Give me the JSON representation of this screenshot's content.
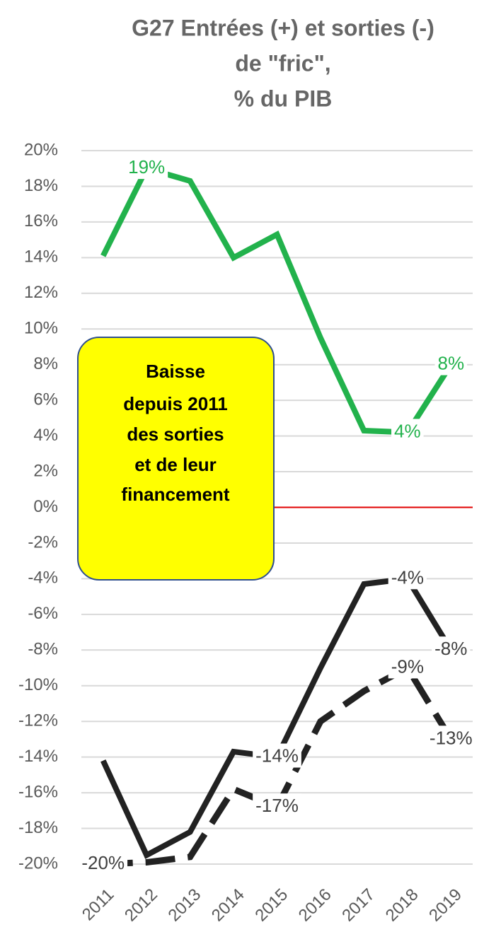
{
  "chart_data": {
    "type": "line",
    "title": [
      "G27  Entrées (+) et sorties (-)",
      "de \"fric\",",
      "% du PIB"
    ],
    "categories": [
      "2011",
      "2012",
      "2013",
      "2014",
      "2015",
      "2016",
      "2017",
      "2018",
      "2019"
    ],
    "series": [
      {
        "color": "#22b24c",
        "style": "solid",
        "values": [
          14.1,
          19,
          18.3,
          14.0,
          15.3,
          9.5,
          4.3,
          4.2,
          8
        ],
        "value_labels": [
          null,
          "19%",
          null,
          null,
          null,
          null,
          null,
          "4%",
          "8%"
        ]
      },
      {
        "color": "#222222",
        "style": "solid",
        "values": [
          -14.2,
          -19.5,
          -18.2,
          -13.7,
          -14,
          -9,
          -4.3,
          -4,
          -8
        ],
        "value_labels": [
          null,
          null,
          null,
          null,
          "-14%",
          null,
          null,
          "-4%",
          "-8%"
        ]
      },
      {
        "color": "#222222",
        "style": "dashed",
        "values": [
          -20,
          -19.9,
          -19.6,
          -15.8,
          -16.8,
          -12,
          -10.3,
          -9,
          -13
        ],
        "value_labels": [
          "-20%",
          null,
          null,
          null,
          "-17%",
          null,
          null,
          "-9%",
          "-13%"
        ]
      }
    ],
    "ylim": [
      -20,
      20
    ],
    "yticks": [
      {
        "value": -20,
        "label": "-20%"
      },
      {
        "value": -18,
        "label": "-18%"
      },
      {
        "value": -16,
        "label": "-16%"
      },
      {
        "value": -14,
        "label": "-14%"
      },
      {
        "value": -12,
        "label": "-12%"
      },
      {
        "value": -10,
        "label": "-10%"
      },
      {
        "value": -8,
        "label": "-8%"
      },
      {
        "value": -6,
        "label": "-6%"
      },
      {
        "value": -4,
        "label": "-4%"
      },
      {
        "value": -2,
        "label": "-2%"
      },
      {
        "value": 0,
        "label": "0%"
      },
      {
        "value": 2,
        "label": "2%"
      },
      {
        "value": 4,
        "label": "4%"
      },
      {
        "value": 6,
        "label": "6%"
      },
      {
        "value": 8,
        "label": "8%"
      },
      {
        "value": 10,
        "label": "10%"
      },
      {
        "value": 12,
        "label": "12%"
      },
      {
        "value": 14,
        "label": "14%"
      },
      {
        "value": 16,
        "label": "16%"
      },
      {
        "value": 18,
        "label": "18%"
      },
      {
        "value": 20,
        "label": "20%"
      }
    ],
    "grid": true,
    "zero_line_color": "#e00000",
    "annotation": [
      "Baisse",
      "depuis 2011",
      "des sorties",
      "et de leur",
      "financement"
    ]
  }
}
